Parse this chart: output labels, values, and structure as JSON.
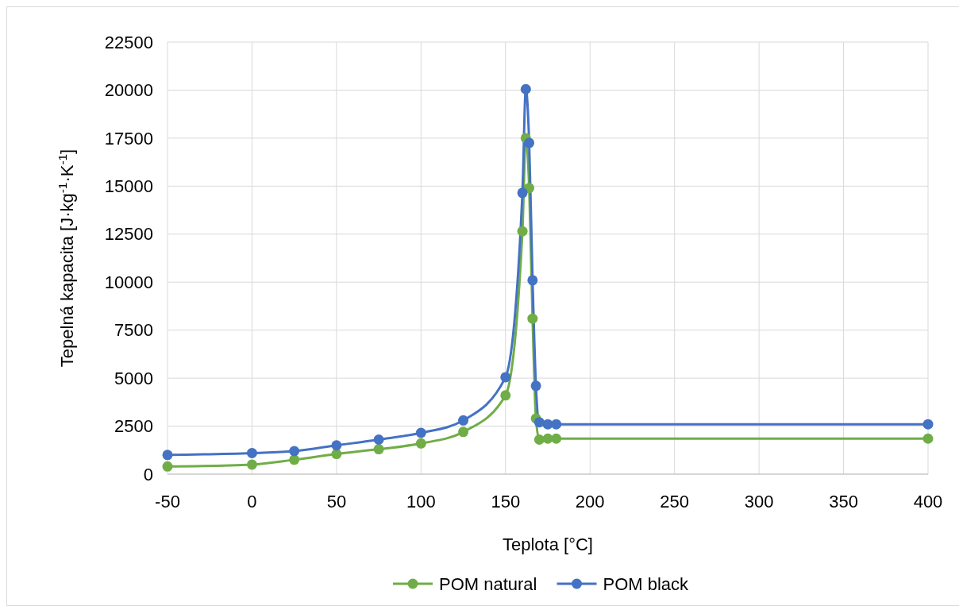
{
  "chart_data": {
    "type": "line",
    "xlabel": "Teplota [°C]",
    "ylabel": "Tepelná kapacita [J·kg$^{-1}$·K$^{-1}$]",
    "x": [
      -50,
      0,
      25,
      50,
      75,
      100,
      125,
      150,
      160,
      162,
      164,
      166,
      168,
      170,
      175,
      180,
      400
    ],
    "series": [
      {
        "name": "POM natural",
        "color": "#70ad47",
        "values": [
          400,
          500,
          750,
          1050,
          1300,
          1600,
          2200,
          4100,
          12650,
          17500,
          14900,
          8100,
          2900,
          1800,
          1850,
          1850,
          1850
        ]
      },
      {
        "name": "POM black",
        "color": "#4472c4",
        "values": [
          1000,
          1100,
          1200,
          1500,
          1800,
          2150,
          2800,
          5050,
          14650,
          20050,
          17250,
          10100,
          4600,
          2700,
          2600,
          2600,
          2600
        ]
      }
    ],
    "xlim": [
      -50,
      400
    ],
    "xticks": [
      -50,
      0,
      50,
      100,
      150,
      200,
      250,
      300,
      350,
      400
    ],
    "ylim": [
      0,
      22500
    ],
    "yticks": [
      0,
      2500,
      5000,
      7500,
      10000,
      12500,
      15000,
      17500,
      20000,
      22500
    ],
    "grid": true,
    "legend": "bottom",
    "marker": "circle",
    "line_style": "solid"
  }
}
